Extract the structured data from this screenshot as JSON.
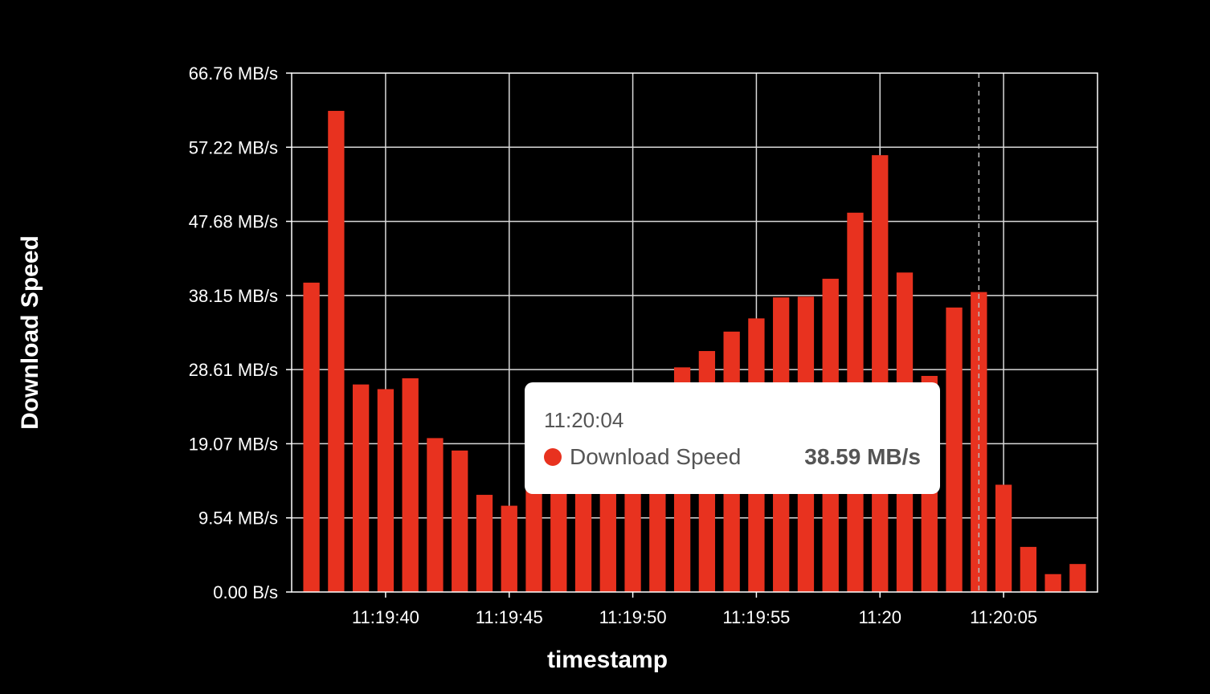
{
  "chart_data": {
    "type": "bar",
    "title": "",
    "xlabel": "timestamp",
    "ylabel": "Download Speed",
    "ylim": [
      0,
      66.76
    ],
    "y_unit": "MB/s",
    "y_tick_labels": [
      "0.00 B/s",
      "9.54 MB/s",
      "19.07 MB/s",
      "28.61 MB/s",
      "38.15 MB/s",
      "47.68 MB/s",
      "57.22 MB/s",
      "66.76 MB/s"
    ],
    "x_tick_labels": [
      "11:19:40",
      "11:19:45",
      "11:19:50",
      "11:19:55",
      "11:20",
      "11:20:05"
    ],
    "grid": true,
    "series": [
      {
        "name": "Download Speed",
        "color": "#e8321f",
        "x": [
          "11:19:37",
          "11:19:38",
          "11:19:39",
          "11:19:40",
          "11:19:41",
          "11:19:42",
          "11:19:43",
          "11:19:44",
          "11:19:45",
          "11:19:46",
          "11:19:47",
          "11:19:48",
          "11:19:49",
          "11:19:50",
          "11:19:51",
          "11:19:52",
          "11:19:53",
          "11:19:54",
          "11:19:55",
          "11:19:56",
          "11:19:57",
          "11:19:58",
          "11:19:59",
          "11:20:00",
          "11:20:01",
          "11:20:02",
          "11:20:03",
          "11:20:04",
          "11:20:05",
          "11:20:06",
          "11:20:07",
          "11:20:08"
        ],
        "values": [
          39.8,
          61.9,
          26.7,
          26.1,
          27.5,
          19.8,
          18.2,
          12.5,
          11.1,
          13.5,
          14.8,
          16.2,
          17.6,
          19.5,
          24.0,
          28.9,
          31.0,
          33.5,
          35.2,
          37.9,
          38.0,
          40.3,
          48.8,
          56.2,
          41.1,
          27.8,
          36.6,
          38.59,
          13.8,
          5.8,
          2.3,
          3.6
        ]
      }
    ],
    "tooltip": {
      "time": "11:20:04",
      "series_name": "Download Speed",
      "value_label": "38.59 MB/s",
      "hover_index": 27
    }
  }
}
